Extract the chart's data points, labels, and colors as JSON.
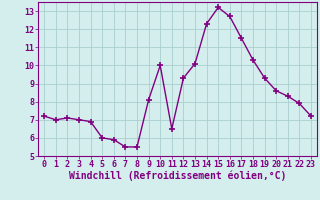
{
  "x": [
    0,
    1,
    2,
    3,
    4,
    5,
    6,
    7,
    8,
    9,
    10,
    11,
    12,
    13,
    14,
    15,
    16,
    17,
    18,
    19,
    20,
    21,
    22,
    23
  ],
  "y": [
    7.2,
    7.0,
    7.1,
    7.0,
    6.9,
    6.0,
    5.9,
    5.5,
    5.5,
    8.1,
    10.0,
    6.5,
    9.3,
    10.1,
    12.3,
    13.2,
    12.7,
    11.5,
    10.3,
    9.3,
    8.6,
    8.3,
    7.9,
    7.2
  ],
  "line_color": "#800080",
  "marker": "+",
  "marker_size": 4,
  "bg_color": "#d4eeee",
  "grid_color": "#aacece",
  "xlabel": "Windchill (Refroidissement éolien,°C)",
  "tick_color": "#800080",
  "ylim": [
    5,
    13.5
  ],
  "xlim": [
    -0.5,
    23.5
  ],
  "yticks": [
    5,
    6,
    7,
    8,
    9,
    10,
    11,
    12,
    13
  ],
  "xticks": [
    0,
    1,
    2,
    3,
    4,
    5,
    6,
    7,
    8,
    9,
    10,
    11,
    12,
    13,
    14,
    15,
    16,
    17,
    18,
    19,
    20,
    21,
    22,
    23
  ],
  "tick_fontsize": 6.0,
  "xlabel_fontsize": 7.0,
  "spine_color": "#800080",
  "linewidth": 1.0,
  "marker_linewidth": 1.2
}
